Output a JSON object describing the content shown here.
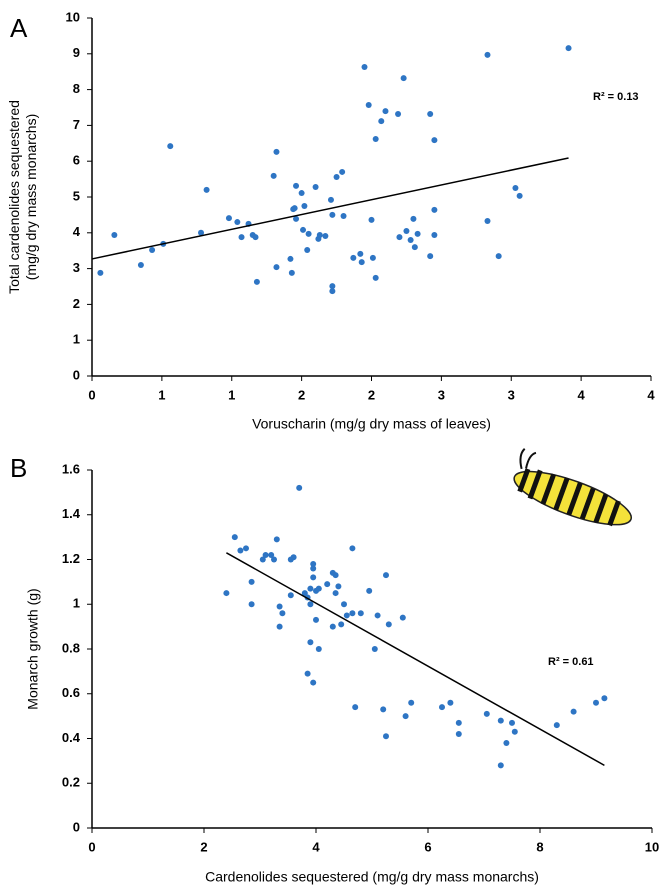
{
  "chart_data": [
    {
      "type": "scatter",
      "panel": "A",
      "xlabel": "Voruscharin (mg/g dry mass of leaves)",
      "ylabel": [
        "Total cardenolides sequestered",
        "(mg/g dry mass monarchs)"
      ],
      "annotation": "R² = 0.13",
      "color": "#2e75c4",
      "xlim": [
        0,
        4
      ],
      "ylim": [
        0,
        10
      ],
      "xticks": [
        0,
        {
          "value": 0.5,
          "label": "1"
        },
        1,
        {
          "value": 1.5,
          "label": "2"
        },
        2,
        {
          "value": 2.5,
          "label": "3"
        },
        3,
        {
          "value": 3.5,
          "label": "4"
        },
        4
      ],
      "yticks": [
        0,
        1,
        2,
        3,
        4,
        5,
        6,
        7,
        8,
        9,
        10
      ],
      "x": [
        0.06,
        0.16,
        0.35,
        0.43,
        0.51,
        0.56,
        0.78,
        0.82,
        0.98,
        1.04,
        1.07,
        1.12,
        1.15,
        1.17,
        1.18,
        1.3,
        1.32,
        1.32,
        1.42,
        1.43,
        1.44,
        1.45,
        1.46,
        1.46,
        1.5,
        1.52,
        1.51,
        1.54,
        1.55,
        1.6,
        1.62,
        1.63,
        1.67,
        1.71,
        1.72,
        1.72,
        1.72,
        1.75,
        1.79,
        1.8,
        1.87,
        1.92,
        1.93,
        1.95,
        1.98,
        2.0,
        2.01,
        2.03,
        2.03,
        2.07,
        2.1,
        2.2,
        2.19,
        2.23,
        2.25,
        2.28,
        2.3,
        2.31,
        2.33,
        2.42,
        2.42,
        2.45,
        2.45,
        2.45,
        2.83,
        2.83,
        2.91,
        3.03,
        3.06,
        3.41
      ],
      "values": [
        2.88,
        3.94,
        3.1,
        3.52,
        3.69,
        6.42,
        4.0,
        5.2,
        4.41,
        4.3,
        3.88,
        4.25,
        3.94,
        3.88,
        2.63,
        5.59,
        6.26,
        3.04,
        3.27,
        2.88,
        4.66,
        4.69,
        5.31,
        4.39,
        5.11,
        4.75,
        4.08,
        3.52,
        3.97,
        5.28,
        3.83,
        3.94,
        3.91,
        4.92,
        4.5,
        2.51,
        2.37,
        5.56,
        5.7,
        4.47,
        3.3,
        3.41,
        3.18,
        8.63,
        7.57,
        4.36,
        3.3,
        6.62,
        2.74,
        7.12,
        7.4,
        3.88,
        7.32,
        8.32,
        4.05,
        3.8,
        4.39,
        3.6,
        3.97,
        7.32,
        3.35,
        6.59,
        4.64,
        3.94,
        8.97,
        4.33,
        3.35,
        5.25,
        5.03,
        9.16
      ],
      "trendline": {
        "x": [
          0,
          3.41
        ],
        "values": [
          3.27,
          6.09
        ],
        "color": "#000000"
      }
    },
    {
      "type": "scatter",
      "panel": "B",
      "xlabel": "Cardenolides sequestered (mg/g dry mass monarchs)",
      "ylabel": [
        "Monarch growth (g)"
      ],
      "annotation": "R² = 0.61",
      "color": "#2e75c4",
      "xlim": [
        0,
        10
      ],
      "ylim": [
        0,
        1.6
      ],
      "xticks": [
        0,
        2,
        4,
        6,
        8,
        10
      ],
      "yticks": [
        0,
        0.2,
        0.4,
        0.6,
        0.8,
        1,
        1.2,
        1.4,
        1.6
      ],
      "x": [
        2.4,
        2.55,
        2.65,
        2.75,
        2.85,
        2.85,
        3.05,
        3.1,
        3.2,
        3.25,
        3.3,
        3.35,
        3.35,
        3.4,
        3.55,
        3.6,
        3.55,
        3.7,
        3.8,
        3.85,
        3.85,
        3.9,
        3.9,
        3.95,
        3.95,
        3.9,
        3.95,
        4.0,
        3.95,
        4.0,
        4.05,
        4.05,
        4.2,
        4.3,
        4.3,
        4.35,
        4.35,
        4.4,
        4.45,
        4.5,
        4.55,
        4.65,
        4.65,
        4.7,
        4.8,
        4.95,
        5.05,
        5.1,
        5.2,
        5.25,
        5.25,
        5.3,
        5.55,
        5.6,
        5.7,
        6.25,
        6.4,
        6.55,
        6.55,
        7.05,
        7.3,
        7.3,
        7.4,
        7.55,
        7.5,
        8.3,
        8.6,
        9.0,
        9.15
      ],
      "values": [
        1.05,
        1.3,
        1.24,
        1.25,
        1.1,
        1.0,
        1.2,
        1.22,
        1.22,
        1.2,
        1.29,
        0.99,
        0.9,
        0.96,
        1.2,
        1.21,
        1.04,
        1.52,
        1.05,
        0.69,
        1.03,
        1.07,
        1.0,
        1.18,
        1.16,
        0.83,
        0.65,
        1.06,
        1.12,
        0.93,
        0.8,
        1.07,
        1.09,
        1.14,
        0.9,
        1.13,
        1.05,
        1.08,
        0.91,
        1.0,
        0.95,
        1.25,
        0.96,
        0.54,
        0.96,
        1.06,
        0.8,
        0.95,
        0.53,
        0.41,
        1.13,
        0.91,
        0.94,
        0.5,
        0.56,
        0.54,
        0.56,
        0.47,
        0.42,
        0.51,
        0.48,
        0.28,
        0.38,
        0.43,
        0.47,
        0.46,
        0.52,
        0.56,
        0.58
      ],
      "trendline": {
        "x": [
          2.4,
          9.15
        ],
        "values": [
          1.23,
          0.28
        ],
        "color": "#000000"
      }
    }
  ]
}
